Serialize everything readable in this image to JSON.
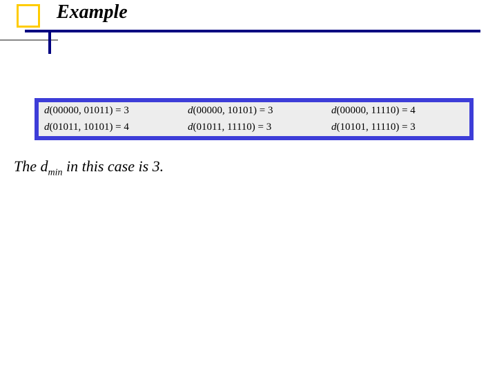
{
  "header": {
    "title": "Example",
    "accent_square_color": "#ffcc00",
    "rule_color_navy": "#000080",
    "rule_color_grey": "#888888"
  },
  "table": {
    "type": "table",
    "border_color": "#3d3dd8",
    "background_color": "#ededed",
    "text_color": "#000000",
    "fontsize": 15,
    "columns": 3,
    "cells": {
      "r0c0": "d(00000, 01011) = 3",
      "r0c1": "d(00000, 10101) = 3",
      "r0c2": "d(00000, 11110) = 4",
      "r1c0": "d(01011, 10101) = 4",
      "r1c1": "d(01011, 11110) = 3",
      "r1c2": "d(10101, 11110) = 3"
    }
  },
  "sentence": {
    "prefix": "The d",
    "subscript": "min",
    "suffix": " in this case is 3."
  }
}
